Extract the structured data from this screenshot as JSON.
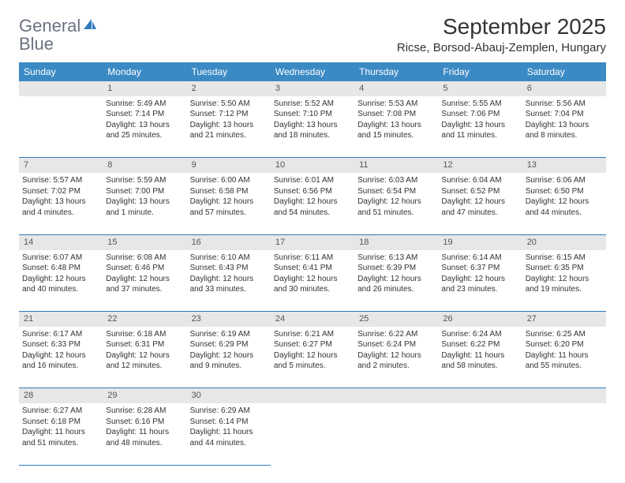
{
  "brand": {
    "part1": "General",
    "part2": "Blue"
  },
  "title": "September 2025",
  "location": "Ricse, Borsod-Abauj-Zemplen, Hungary",
  "colors": {
    "header_bg": "#3b8ac4",
    "header_text": "#ffffff",
    "daynum_bg": "#e7e7e7",
    "cell_border": "#2f7bbf",
    "body_text": "#333333",
    "logo_gray": "#6b7280",
    "logo_blue": "#2f7bbf"
  },
  "weekdays": [
    "Sunday",
    "Monday",
    "Tuesday",
    "Wednesday",
    "Thursday",
    "Friday",
    "Saturday"
  ],
  "weeks": [
    {
      "nums": [
        "",
        "1",
        "2",
        "3",
        "4",
        "5",
        "6"
      ],
      "cells": [
        null,
        {
          "sunrise": "Sunrise: 5:49 AM",
          "sunset": "Sunset: 7:14 PM",
          "day1": "Daylight: 13 hours",
          "day2": "and 25 minutes."
        },
        {
          "sunrise": "Sunrise: 5:50 AM",
          "sunset": "Sunset: 7:12 PM",
          "day1": "Daylight: 13 hours",
          "day2": "and 21 minutes."
        },
        {
          "sunrise": "Sunrise: 5:52 AM",
          "sunset": "Sunset: 7:10 PM",
          "day1": "Daylight: 13 hours",
          "day2": "and 18 minutes."
        },
        {
          "sunrise": "Sunrise: 5:53 AM",
          "sunset": "Sunset: 7:08 PM",
          "day1": "Daylight: 13 hours",
          "day2": "and 15 minutes."
        },
        {
          "sunrise": "Sunrise: 5:55 AM",
          "sunset": "Sunset: 7:06 PM",
          "day1": "Daylight: 13 hours",
          "day2": "and 11 minutes."
        },
        {
          "sunrise": "Sunrise: 5:56 AM",
          "sunset": "Sunset: 7:04 PM",
          "day1": "Daylight: 13 hours",
          "day2": "and 8 minutes."
        }
      ]
    },
    {
      "nums": [
        "7",
        "8",
        "9",
        "10",
        "11",
        "12",
        "13"
      ],
      "cells": [
        {
          "sunrise": "Sunrise: 5:57 AM",
          "sunset": "Sunset: 7:02 PM",
          "day1": "Daylight: 13 hours",
          "day2": "and 4 minutes."
        },
        {
          "sunrise": "Sunrise: 5:59 AM",
          "sunset": "Sunset: 7:00 PM",
          "day1": "Daylight: 13 hours",
          "day2": "and 1 minute."
        },
        {
          "sunrise": "Sunrise: 6:00 AM",
          "sunset": "Sunset: 6:58 PM",
          "day1": "Daylight: 12 hours",
          "day2": "and 57 minutes."
        },
        {
          "sunrise": "Sunrise: 6:01 AM",
          "sunset": "Sunset: 6:56 PM",
          "day1": "Daylight: 12 hours",
          "day2": "and 54 minutes."
        },
        {
          "sunrise": "Sunrise: 6:03 AM",
          "sunset": "Sunset: 6:54 PM",
          "day1": "Daylight: 12 hours",
          "day2": "and 51 minutes."
        },
        {
          "sunrise": "Sunrise: 6:04 AM",
          "sunset": "Sunset: 6:52 PM",
          "day1": "Daylight: 12 hours",
          "day2": "and 47 minutes."
        },
        {
          "sunrise": "Sunrise: 6:06 AM",
          "sunset": "Sunset: 6:50 PM",
          "day1": "Daylight: 12 hours",
          "day2": "and 44 minutes."
        }
      ]
    },
    {
      "nums": [
        "14",
        "15",
        "16",
        "17",
        "18",
        "19",
        "20"
      ],
      "cells": [
        {
          "sunrise": "Sunrise: 6:07 AM",
          "sunset": "Sunset: 6:48 PM",
          "day1": "Daylight: 12 hours",
          "day2": "and 40 minutes."
        },
        {
          "sunrise": "Sunrise: 6:08 AM",
          "sunset": "Sunset: 6:46 PM",
          "day1": "Daylight: 12 hours",
          "day2": "and 37 minutes."
        },
        {
          "sunrise": "Sunrise: 6:10 AM",
          "sunset": "Sunset: 6:43 PM",
          "day1": "Daylight: 12 hours",
          "day2": "and 33 minutes."
        },
        {
          "sunrise": "Sunrise: 6:11 AM",
          "sunset": "Sunset: 6:41 PM",
          "day1": "Daylight: 12 hours",
          "day2": "and 30 minutes."
        },
        {
          "sunrise": "Sunrise: 6:13 AM",
          "sunset": "Sunset: 6:39 PM",
          "day1": "Daylight: 12 hours",
          "day2": "and 26 minutes."
        },
        {
          "sunrise": "Sunrise: 6:14 AM",
          "sunset": "Sunset: 6:37 PM",
          "day1": "Daylight: 12 hours",
          "day2": "and 23 minutes."
        },
        {
          "sunrise": "Sunrise: 6:15 AM",
          "sunset": "Sunset: 6:35 PM",
          "day1": "Daylight: 12 hours",
          "day2": "and 19 minutes."
        }
      ]
    },
    {
      "nums": [
        "21",
        "22",
        "23",
        "24",
        "25",
        "26",
        "27"
      ],
      "cells": [
        {
          "sunrise": "Sunrise: 6:17 AM",
          "sunset": "Sunset: 6:33 PM",
          "day1": "Daylight: 12 hours",
          "day2": "and 16 minutes."
        },
        {
          "sunrise": "Sunrise: 6:18 AM",
          "sunset": "Sunset: 6:31 PM",
          "day1": "Daylight: 12 hours",
          "day2": "and 12 minutes."
        },
        {
          "sunrise": "Sunrise: 6:19 AM",
          "sunset": "Sunset: 6:29 PM",
          "day1": "Daylight: 12 hours",
          "day2": "and 9 minutes."
        },
        {
          "sunrise": "Sunrise: 6:21 AM",
          "sunset": "Sunset: 6:27 PM",
          "day1": "Daylight: 12 hours",
          "day2": "and 5 minutes."
        },
        {
          "sunrise": "Sunrise: 6:22 AM",
          "sunset": "Sunset: 6:24 PM",
          "day1": "Daylight: 12 hours",
          "day2": "and 2 minutes."
        },
        {
          "sunrise": "Sunrise: 6:24 AM",
          "sunset": "Sunset: 6:22 PM",
          "day1": "Daylight: 11 hours",
          "day2": "and 58 minutes."
        },
        {
          "sunrise": "Sunrise: 6:25 AM",
          "sunset": "Sunset: 6:20 PM",
          "day1": "Daylight: 11 hours",
          "day2": "and 55 minutes."
        }
      ]
    },
    {
      "nums": [
        "28",
        "29",
        "30",
        "",
        "",
        "",
        ""
      ],
      "cells": [
        {
          "sunrise": "Sunrise: 6:27 AM",
          "sunset": "Sunset: 6:18 PM",
          "day1": "Daylight: 11 hours",
          "day2": "and 51 minutes."
        },
        {
          "sunrise": "Sunrise: 6:28 AM",
          "sunset": "Sunset: 6:16 PM",
          "day1": "Daylight: 11 hours",
          "day2": "and 48 minutes."
        },
        {
          "sunrise": "Sunrise: 6:29 AM",
          "sunset": "Sunset: 6:14 PM",
          "day1": "Daylight: 11 hours",
          "day2": "and 44 minutes."
        },
        null,
        null,
        null,
        null
      ]
    }
  ]
}
